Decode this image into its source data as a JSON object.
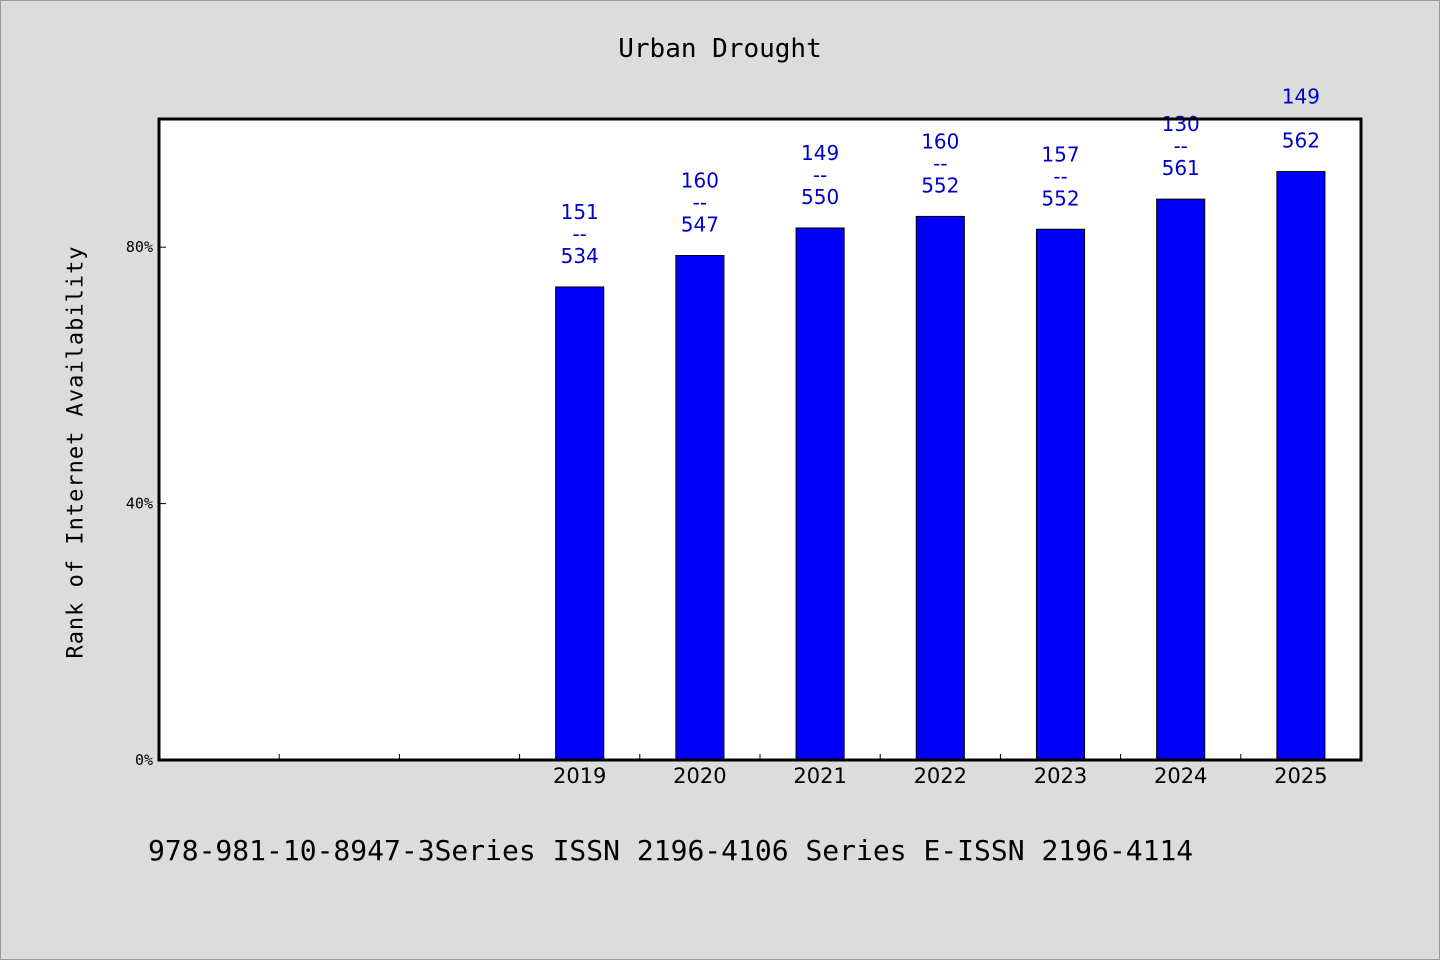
{
  "chart_data": {
    "type": "bar",
    "title": "Urban Drought",
    "ylabel": "Rank of Internet Availability",
    "xlabel": "",
    "categories": [
      "",
      "",
      "",
      "2019",
      "2020",
      "2021",
      "2022",
      "2023",
      "2024",
      "2025"
    ],
    "values": [
      null,
      null,
      null,
      73.8,
      78.7,
      83.0,
      84.8,
      82.8,
      87.5,
      91.8
    ],
    "data_labels": [
      null,
      null,
      null,
      [
        "151",
        "--",
        "534"
      ],
      [
        "160",
        "--",
        "547"
      ],
      [
        "149",
        "--",
        "550"
      ],
      [
        "160",
        "--",
        "552"
      ],
      [
        "157",
        "--",
        "552"
      ],
      [
        "130",
        "--",
        "561"
      ],
      [
        "149",
        "--",
        "562"
      ]
    ],
    "ylim": [
      0,
      100
    ],
    "yticks": [
      0,
      40,
      80
    ],
    "ytick_labels": [
      "0%",
      "40%",
      "80%"
    ],
    "grid": false,
    "legend": "none",
    "colors": {
      "bar": "#0000ff",
      "label": "#0000cc",
      "plot_bg": "#ffffff",
      "page_bg": "#dcdcdc"
    }
  },
  "footer": {
    "text": "978-981-10-8947-3Series ISSN 2196-4106 Series E-ISSN 2196-4114"
  }
}
